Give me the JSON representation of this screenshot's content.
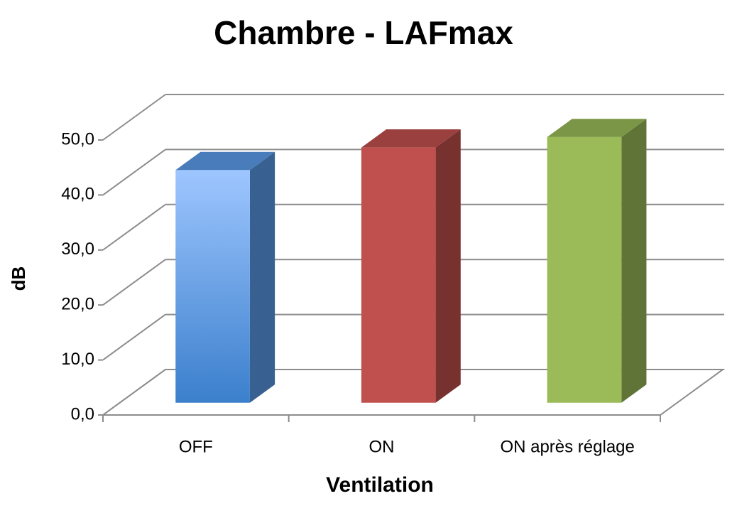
{
  "chart_data": {
    "type": "bar3d",
    "title": "Chambre - LAFmax",
    "x_label": "Ventilation",
    "y_label": "dB",
    "categories": [
      "OFF",
      "ON",
      "ON après réglage"
    ],
    "values": [
      42.3,
      46.4,
      48.3
    ],
    "colors": [
      "#5b9be8",
      "#c0504d",
      "#9bbb59"
    ],
    "ylim": [
      0,
      50
    ],
    "yticks": [
      {
        "value": 0,
        "label": "0,0"
      },
      {
        "value": 10,
        "label": "10,0"
      },
      {
        "value": 20,
        "label": "20,0"
      },
      {
        "value": 30,
        "label": "30,0"
      },
      {
        "value": 40,
        "label": "40,0"
      },
      {
        "value": 50,
        "label": "50,0"
      }
    ],
    "grid": true
  }
}
